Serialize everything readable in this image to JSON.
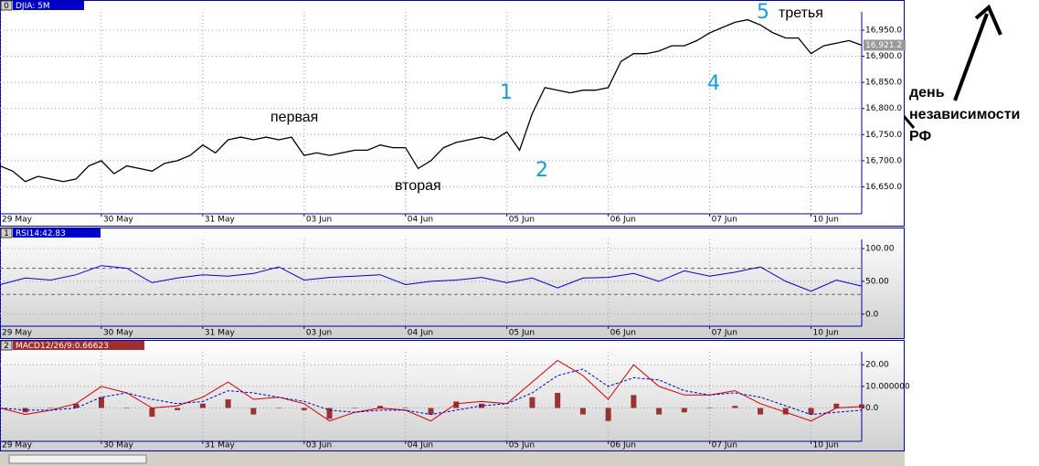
{
  "chart_data": [
    {
      "type": "line",
      "panel_id": "0",
      "title": "DJIA: 5M",
      "grid": true,
      "xlim": [
        0,
        8.5
      ],
      "xticks": [
        {
          "value": 0,
          "label": "29 May"
        },
        {
          "value": 1,
          "label": "30 May"
        },
        {
          "value": 2,
          "label": "31 May"
        },
        {
          "value": 3,
          "label": "03 Jun"
        },
        {
          "value": 4,
          "label": "04 Jun"
        },
        {
          "value": 5,
          "label": "05 Jun"
        },
        {
          "value": 6,
          "label": "06 Jun"
        },
        {
          "value": 7,
          "label": "07 Jun"
        },
        {
          "value": 8,
          "label": "10 Jun"
        }
      ],
      "ylim": [
        16600,
        16985
      ],
      "yticks": [
        {
          "value": 16650,
          "label": "16,650.0"
        },
        {
          "value": 16700,
          "label": "16,700.0"
        },
        {
          "value": 16750,
          "label": "16,750.0"
        },
        {
          "value": 16800,
          "label": "16,800.0"
        },
        {
          "value": 16850,
          "label": "16,850.0"
        },
        {
          "value": 16900,
          "label": "16,900.0"
        },
        {
          "value": 16950,
          "label": "16,950.0"
        }
      ],
      "current_price": {
        "value": 16921.2,
        "label": "16,921.2"
      },
      "x": [
        0,
        0.125,
        0.25,
        0.375,
        0.5,
        0.625,
        0.75,
        0.875,
        1,
        1.125,
        1.25,
        1.375,
        1.5,
        1.625,
        1.75,
        1.875,
        2,
        2.125,
        2.25,
        2.375,
        2.5,
        2.625,
        2.75,
        2.875,
        3,
        3.125,
        3.25,
        3.375,
        3.5,
        3.625,
        3.75,
        3.875,
        4,
        4.125,
        4.25,
        4.375,
        4.5,
        4.625,
        4.75,
        4.875,
        5,
        5.125,
        5.25,
        5.375,
        5.5,
        5.625,
        5.75,
        5.875,
        6,
        6.125,
        6.25,
        6.375,
        6.5,
        6.625,
        6.75,
        6.875,
        7,
        7.125,
        7.25,
        7.375,
        7.5,
        7.625,
        7.75,
        7.875,
        8,
        8.125,
        8.25,
        8.375,
        8.5
      ],
      "series": [
        {
          "color": "#000000",
          "values": [
            16690,
            16680,
            16660,
            16670,
            16665,
            16660,
            16665,
            16690,
            16700,
            16675,
            16690,
            16685,
            16680,
            16695,
            16700,
            16710,
            16730,
            16715,
            16740,
            16745,
            16740,
            16745,
            16740,
            16745,
            16710,
            16715,
            16710,
            16715,
            16720,
            16720,
            16730,
            16725,
            16725,
            16685,
            16700,
            16725,
            16735,
            16740,
            16745,
            16740,
            16755,
            16720,
            16790,
            16840,
            16835,
            16830,
            16835,
            16835,
            16840,
            16890,
            16905,
            16905,
            16910,
            16920,
            16920,
            16930,
            16945,
            16955,
            16965,
            16970,
            16960,
            16945,
            16935,
            16935,
            16905,
            16920,
            16925,
            16930,
            16921.2
          ]
        }
      ],
      "annotations": [
        "первая",
        "вторая",
        "третья",
        "день",
        "независимости",
        "РФ"
      ],
      "marks": [
        "1",
        "2",
        "4",
        "5"
      ],
      "marks_color": "#1a9bd7"
    },
    {
      "type": "line",
      "panel_id": "1",
      "title": "RSI14:42.83",
      "grid": true,
      "xlim": [
        0,
        8.5
      ],
      "xticks": [
        {
          "value": 0,
          "label": "29 May"
        },
        {
          "value": 1,
          "label": "30 May"
        },
        {
          "value": 2,
          "label": "31 May"
        },
        {
          "value": 3,
          "label": "03 Jun"
        },
        {
          "value": 4,
          "label": "04 Jun"
        },
        {
          "value": 5,
          "label": "05 Jun"
        },
        {
          "value": 6,
          "label": "06 Jun"
        },
        {
          "value": 7,
          "label": "07 Jun"
        },
        {
          "value": 8,
          "label": "10 Jun"
        }
      ],
      "ylim": [
        -17,
        114
      ],
      "yticks": [
        {
          "value": 0,
          "label": "0.0"
        },
        {
          "value": 50,
          "label": "50.00"
        },
        {
          "value": 100,
          "label": "100.00"
        }
      ],
      "levels": [
        30,
        70
      ],
      "x": [
        0,
        0.25,
        0.5,
        0.75,
        1,
        1.25,
        1.5,
        1.75,
        2,
        2.25,
        2.5,
        2.75,
        3,
        3.25,
        3.5,
        3.75,
        4,
        4.25,
        4.5,
        4.75,
        5,
        5.25,
        5.5,
        5.75,
        6,
        6.25,
        6.5,
        6.75,
        7,
        7.25,
        7.5,
        7.75,
        8,
        8.25,
        8.5
      ],
      "series": [
        {
          "color": "#0000cc",
          "values": [
            45,
            55,
            52,
            60,
            74,
            70,
            48,
            55,
            60,
            58,
            62,
            72,
            52,
            56,
            58,
            60,
            45,
            50,
            52,
            56,
            48,
            55,
            40,
            55,
            56,
            62,
            50,
            66,
            58,
            64,
            72,
            50,
            35,
            52,
            42.83
          ]
        }
      ]
    },
    {
      "type": "combo",
      "panel_id": "2",
      "title": "MACD12/26/9:0.66623",
      "grid": true,
      "xlim": [
        0,
        8.5
      ],
      "xticks": [
        {
          "value": 0,
          "label": "29 May"
        },
        {
          "value": 1,
          "label": "30 May"
        },
        {
          "value": 2,
          "label": "31 May"
        },
        {
          "value": 3,
          "label": "03 Jun"
        },
        {
          "value": 4,
          "label": "04 Jun"
        },
        {
          "value": 5,
          "label": "05 Jun"
        },
        {
          "value": 6,
          "label": "06 Jun"
        },
        {
          "value": 7,
          "label": "07 Jun"
        },
        {
          "value": 8,
          "label": "10 Jun"
        }
      ],
      "ylim": [
        -15,
        26
      ],
      "yticks": [
        {
          "value": 0,
          "label": "0.0"
        },
        {
          "value": 10,
          "label": "10.000000"
        },
        {
          "value": 20,
          "label": "20.00"
        }
      ],
      "x": [
        0,
        0.25,
        0.5,
        0.75,
        1,
        1.25,
        1.5,
        1.75,
        2,
        2.25,
        2.5,
        2.75,
        3,
        3.25,
        3.5,
        3.75,
        4,
        4.25,
        4.5,
        4.75,
        5,
        5.25,
        5.5,
        5.75,
        6,
        6.25,
        6.5,
        6.75,
        7,
        7.25,
        7.5,
        7.75,
        8,
        8.25,
        8.5
      ],
      "series": [
        {
          "kind": "bar",
          "color": "#993333",
          "values": [
            0,
            -2,
            0,
            2,
            5,
            0,
            -4,
            -1,
            2,
            4,
            -3,
            0,
            -1,
            -5,
            0,
            1,
            0,
            -3,
            3,
            2,
            0,
            5,
            7,
            -3,
            -6,
            6,
            -3,
            -2,
            0,
            1,
            -3,
            -3,
            -3,
            2,
            1.67
          ]
        },
        {
          "kind": "line",
          "color": "#cc0000",
          "values": [
            0,
            -3,
            -1,
            2,
            10,
            7,
            0,
            1,
            5,
            12,
            4,
            5,
            2,
            -6,
            -2,
            0,
            -1,
            -6,
            2,
            3,
            2,
            12,
            22,
            15,
            4,
            20,
            10,
            6,
            6,
            8,
            2,
            -2,
            -6,
            0,
            0.67
          ]
        },
        {
          "kind": "line",
          "color": "#0000cc",
          "dash": true,
          "values": [
            0,
            -1,
            -1,
            0,
            5,
            7,
            4,
            2,
            3,
            8,
            7,
            5,
            3,
            -1,
            -2,
            -1,
            -1,
            -3,
            -1,
            1,
            2,
            7,
            15,
            18,
            10,
            14,
            13,
            8,
            6,
            7,
            5,
            1,
            -3,
            -2,
            -1
          ]
        }
      ]
    }
  ]
}
